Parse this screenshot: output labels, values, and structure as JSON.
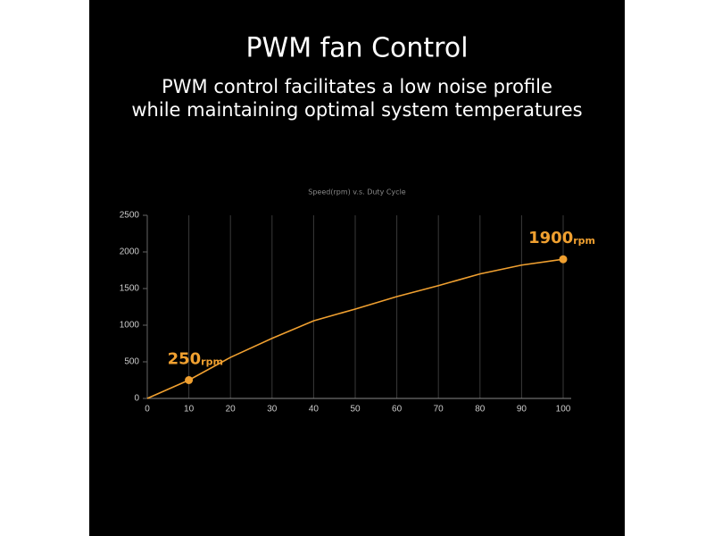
{
  "header": {
    "title": "PWM fan Control",
    "subtitle": [
      "PWM control facilitates a low noise profile",
      "while maintaining optimal system temperatures"
    ]
  },
  "chart_data": {
    "type": "line",
    "title": "Speed(rpm)  v.s.  Duty Cycle",
    "x": [
      0,
      10,
      20,
      30,
      40,
      50,
      60,
      70,
      80,
      90,
      100
    ],
    "series": [
      {
        "color": "#f0a030",
        "values": [
          0,
          250,
          560,
          820,
          1060,
          1220,
          1390,
          1540,
          1700,
          1820,
          1900
        ],
        "value_labels": [
          null,
          "250",
          null,
          null,
          null,
          null,
          null,
          null,
          null,
          null,
          "1900"
        ]
      }
    ],
    "value_label_unit": "rpm",
    "xlim": [
      0,
      100
    ],
    "xticks": [
      0,
      10,
      20,
      30,
      40,
      50,
      60,
      70,
      80,
      90,
      100
    ],
    "ylim": [
      0,
      2500
    ],
    "yticks": [
      0,
      500,
      1000,
      1500,
      2000,
      2500
    ],
    "grid": true
  }
}
